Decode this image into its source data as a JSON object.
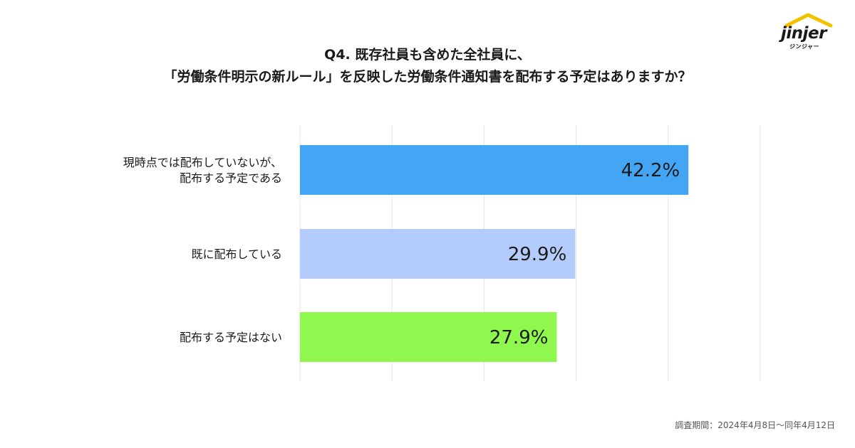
{
  "title": {
    "line1": "Q4. 既存社員も含めた全社員に、",
    "line2": "「労働条件明示の新ルール」を反映した労働条件通知書を配布する予定はありますか？"
  },
  "logo": {
    "brand": "jinjer",
    "sub": "ジンジャー",
    "icon": "house-roof-icon",
    "accent": "#f2c200"
  },
  "footnote": "調査期間：2024年4月8日〜同年4月12日",
  "chart_data": {
    "type": "bar",
    "orientation": "horizontal",
    "categories": [
      [
        "現時点では配布していないが、",
        "配布する予定である"
      ],
      [
        "既に配布している"
      ],
      [
        "配布する予定はない"
      ]
    ],
    "values": [
      42.2,
      29.9,
      27.9
    ],
    "labels": [
      "42.2%",
      "29.9%",
      "27.9%"
    ],
    "colors": [
      "#44a5f4",
      "#b3ccfc",
      "#8ff74e"
    ],
    "xlim": [
      0,
      50
    ],
    "grid": true,
    "gridline_color": "#e6e6e6"
  }
}
